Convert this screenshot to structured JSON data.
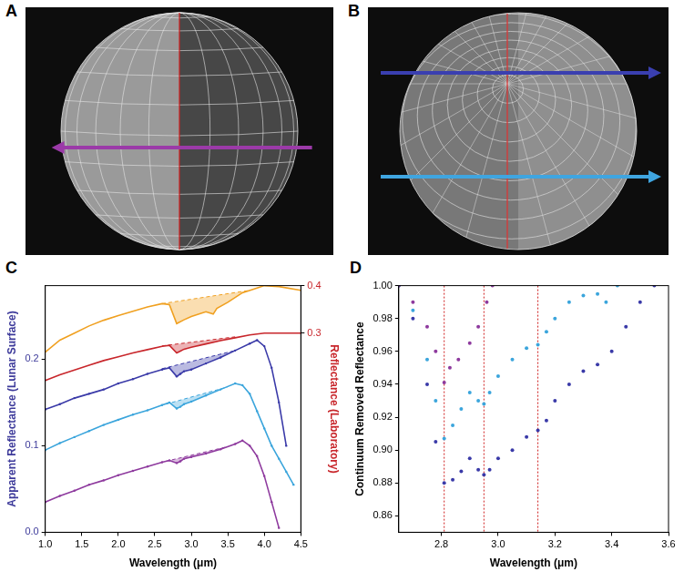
{
  "images": [
    {
      "panel": "A"
    },
    {
      "panel": "B"
    }
  ],
  "chart_data": [
    {
      "type": "line",
      "panel": "C",
      "x_label": "Wavelength (μm)",
      "y_label": "Apparent Reflectance (Lunar Surface)",
      "y2_label": "Reflectance (Laboratory)",
      "xlim": [
        1.0,
        4.5
      ],
      "xticks": [
        {
          "value": 1.0,
          "label": "1.0"
        },
        1.5,
        {
          "value": 2.0,
          "label": "2.0"
        },
        2.5,
        {
          "value": 3.0,
          "label": "3.0"
        },
        3.5,
        {
          "value": 4.0,
          "label": "4.0"
        },
        4.5
      ],
      "ylim": [
        0,
        0.285
      ],
      "yticks": [
        {
          "value": 0,
          "label": "0.0"
        },
        0.1,
        0.2
      ],
      "y2lim": [
        -0.12,
        0.4
      ],
      "y2ticks": [
        0.3,
        0.4
      ],
      "grid": false,
      "series": [
        {
          "color": "#f0a020",
          "axis": "y2",
          "line_style": "solid",
          "marker": "none",
          "x": [
            1.0,
            1.2,
            1.4,
            1.6,
            1.8,
            2.0,
            2.2,
            2.4,
            2.6,
            2.7,
            2.8,
            2.9,
            3.0,
            3.2,
            3.3,
            3.35,
            3.5,
            3.7,
            3.9,
            4.0,
            4.2,
            4.5
          ],
          "values": [
            0.26,
            0.285,
            0.3,
            0.315,
            0.327,
            0.337,
            0.346,
            0.355,
            0.362,
            0.36,
            0.32,
            0.328,
            0.335,
            0.345,
            0.34,
            0.352,
            0.365,
            0.385,
            0.395,
            0.4,
            0.398,
            0.39
          ]
        },
        {
          "color": "#f0a020",
          "axis": "y2",
          "line_style": "dashed",
          "marker": "none",
          "x": [
            2.6,
            3.8
          ],
          "values": [
            0.362,
            0.39
          ]
        },
        {
          "color": "#c8262b",
          "axis": "y2",
          "line_style": "solid",
          "marker": "none",
          "x": [
            1.0,
            1.2,
            1.4,
            1.6,
            1.8,
            2.0,
            2.2,
            2.4,
            2.6,
            2.7,
            2.8,
            2.85,
            2.9,
            3.0,
            3.2,
            3.4,
            3.6,
            3.8,
            4.0,
            4.2,
            4.5
          ],
          "values": [
            0.2,
            0.212,
            0.222,
            0.232,
            0.242,
            0.25,
            0.258,
            0.265,
            0.272,
            0.274,
            0.258,
            0.262,
            0.266,
            0.27,
            0.277,
            0.284,
            0.29,
            0.296,
            0.3,
            0.3,
            0.3
          ]
        },
        {
          "color": "#c8262b",
          "axis": "y2",
          "line_style": "dashed",
          "marker": "none",
          "x": [
            2.6,
            3.6
          ],
          "values": [
            0.273,
            0.292
          ]
        },
        {
          "color": "#3a3aa8",
          "axis": "y",
          "line_style": "solid",
          "marker": "circle",
          "x": [
            1.0,
            1.2,
            1.4,
            1.6,
            1.8,
            2.0,
            2.2,
            2.4,
            2.6,
            2.7,
            2.8,
            2.85,
            2.9,
            3.0,
            3.2,
            3.4,
            3.6,
            3.8,
            3.9,
            4.0,
            4.1,
            4.2,
            4.3
          ],
          "values": [
            0.142,
            0.148,
            0.155,
            0.16,
            0.165,
            0.172,
            0.177,
            0.183,
            0.188,
            0.19,
            0.18,
            0.183,
            0.186,
            0.188,
            0.195,
            0.202,
            0.21,
            0.218,
            0.222,
            0.215,
            0.19,
            0.15,
            0.1
          ]
        },
        {
          "color": "#3a3aa8",
          "axis": "y",
          "line_style": "dashed",
          "marker": "none",
          "x": [
            2.6,
            3.6
          ],
          "values": [
            0.189,
            0.21
          ]
        },
        {
          "color": "#3ba5dc",
          "axis": "y",
          "line_style": "solid",
          "marker": "circle",
          "x": [
            1.0,
            1.2,
            1.4,
            1.6,
            1.8,
            2.0,
            2.2,
            2.4,
            2.6,
            2.7,
            2.8,
            2.85,
            2.9,
            3.0,
            3.2,
            3.4,
            3.6,
            3.7,
            3.8,
            3.9,
            4.0,
            4.1,
            4.2,
            4.3,
            4.4
          ],
          "values": [
            0.095,
            0.103,
            0.11,
            0.117,
            0.124,
            0.13,
            0.136,
            0.141,
            0.147,
            0.15,
            0.143,
            0.145,
            0.148,
            0.151,
            0.158,
            0.165,
            0.172,
            0.17,
            0.16,
            0.14,
            0.12,
            0.1,
            0.085,
            0.07,
            0.055
          ]
        },
        {
          "color": "#3ba5dc",
          "axis": "y",
          "line_style": "dashed",
          "marker": "none",
          "x": [
            2.65,
            3.5
          ],
          "values": [
            0.148,
            0.168
          ]
        },
        {
          "color": "#8e3a9e",
          "axis": "y",
          "line_style": "solid",
          "marker": "circle",
          "x": [
            1.0,
            1.2,
            1.4,
            1.6,
            1.8,
            2.0,
            2.2,
            2.4,
            2.6,
            2.7,
            2.8,
            2.85,
            2.9,
            3.0,
            3.2,
            3.4,
            3.6,
            3.7,
            3.8,
            3.9,
            4.0,
            4.1,
            4.2
          ],
          "values": [
            0.035,
            0.042,
            0.048,
            0.055,
            0.06,
            0.066,
            0.071,
            0.076,
            0.081,
            0.083,
            0.08,
            0.082,
            0.085,
            0.087,
            0.091,
            0.096,
            0.102,
            0.106,
            0.1,
            0.088,
            0.065,
            0.035,
            0.005
          ]
        },
        {
          "color": "#8e3a9e",
          "axis": "y",
          "line_style": "dashed",
          "marker": "none",
          "x": [
            2.65,
            3.5
          ],
          "values": [
            0.082,
            0.099
          ]
        }
      ]
    },
    {
      "type": "scatter",
      "panel": "D",
      "x_label": "Wavelength (μm)",
      "y_label": "Continuum Removed Reflectance",
      "xlim": [
        2.65,
        3.6
      ],
      "xticks": [
        2.8,
        {
          "value": 3.0,
          "label": "3.0"
        },
        3.2,
        3.4,
        3.6
      ],
      "ylim": [
        0.85,
        1.0
      ],
      "yticks": [
        0.86,
        0.88,
        {
          "value": 0.9,
          "label": "0.90"
        },
        0.92,
        0.94,
        0.96,
        0.98,
        {
          "value": 1.0,
          "label": "1.00"
        }
      ],
      "grid": false,
      "vertical_lines": [
        2.81,
        2.95,
        3.14
      ],
      "series": [
        {
          "color": "#8e3a9e",
          "marker": "circle",
          "x": [
            2.65,
            2.7,
            2.75,
            2.78,
            2.81,
            2.83,
            2.86,
            2.9,
            2.93,
            2.96,
            2.98
          ],
          "values": [
            1.0,
            0.99,
            0.975,
            0.96,
            0.941,
            0.95,
            0.955,
            0.965,
            0.975,
            0.99,
            1.0
          ]
        },
        {
          "color": "#3ba5dc",
          "marker": "circle",
          "x": [
            2.65,
            2.7,
            2.75,
            2.78,
            2.81,
            2.84,
            2.87,
            2.9,
            2.93,
            2.95,
            2.97,
            3.0,
            3.05,
            3.1,
            3.14,
            3.17,
            3.2,
            3.25,
            3.3,
            3.35,
            3.38,
            3.42
          ],
          "values": [
            1.0,
            0.985,
            0.955,
            0.93,
            0.907,
            0.915,
            0.925,
            0.935,
            0.93,
            0.928,
            0.935,
            0.945,
            0.955,
            0.962,
            0.964,
            0.972,
            0.98,
            0.99,
            0.994,
            0.995,
            0.99,
            1.0
          ]
        },
        {
          "color": "#3a3aa8",
          "marker": "circle",
          "x": [
            2.65,
            2.7,
            2.75,
            2.78,
            2.81,
            2.84,
            2.87,
            2.9,
            2.93,
            2.95,
            2.97,
            3.0,
            3.05,
            3.1,
            3.14,
            3.17,
            3.2,
            3.25,
            3.3,
            3.35,
            3.4,
            3.45,
            3.5,
            3.55
          ],
          "values": [
            1.0,
            0.98,
            0.94,
            0.905,
            0.88,
            0.882,
            0.887,
            0.895,
            0.888,
            0.885,
            0.888,
            0.895,
            0.9,
            0.908,
            0.912,
            0.918,
            0.93,
            0.94,
            0.948,
            0.952,
            0.96,
            0.975,
            0.99,
            1.0
          ]
        }
      ]
    }
  ]
}
